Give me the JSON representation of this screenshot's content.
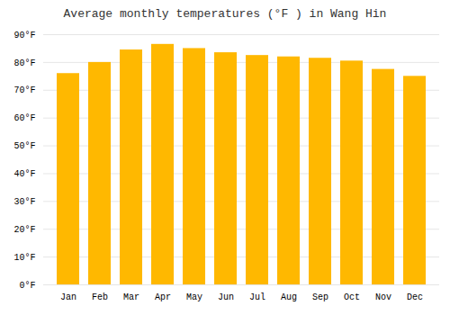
{
  "chart_data": {
    "type": "bar",
    "title": "Average monthly temperatures (°F ) in Wang Hin",
    "categories": [
      "Jan",
      "Feb",
      "Mar",
      "Apr",
      "May",
      "Jun",
      "Jul",
      "Aug",
      "Sep",
      "Oct",
      "Nov",
      "Dec"
    ],
    "values": [
      76,
      80,
      84.5,
      86.5,
      85,
      83.5,
      82.5,
      82,
      81.5,
      80.5,
      77.5,
      75
    ],
    "color": "#FFB800",
    "ylim": [
      0,
      90
    ],
    "yticks": [
      {
        "value": 0,
        "label": "0°F"
      },
      {
        "value": 10,
        "label": "10°F"
      },
      {
        "value": 20,
        "label": "20°F"
      },
      {
        "value": 30,
        "label": "30°F"
      },
      {
        "value": 40,
        "label": "40°F"
      },
      {
        "value": 50,
        "label": "50°F"
      },
      {
        "value": 60,
        "label": "60°F"
      },
      {
        "value": 70,
        "label": "70°F"
      },
      {
        "value": 80,
        "label": "80°F"
      },
      {
        "value": 90,
        "label": "90°F"
      }
    ],
    "grid": true
  }
}
